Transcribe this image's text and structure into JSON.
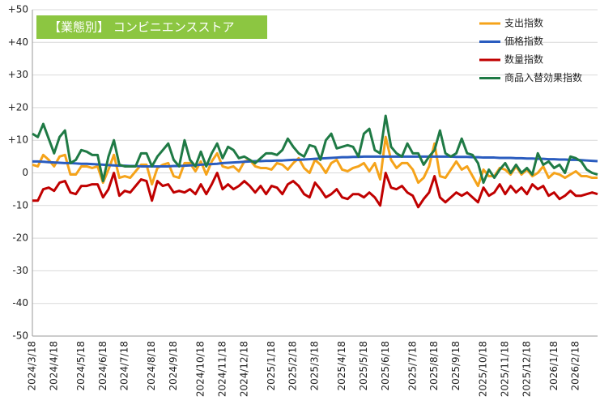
{
  "chart_data": {
    "type": "line",
    "title": "【業態別】 コンビニエンスストア",
    "categories": [
      "2024/3/18",
      null,
      null,
      null,
      "2024/4/18",
      null,
      null,
      null,
      null,
      "2024/5/18",
      null,
      null,
      null,
      "2024/6/18",
      null,
      null,
      null,
      "2024/7/18",
      null,
      null,
      null,
      null,
      "2024/8/18",
      null,
      null,
      null,
      "2024/9/18",
      null,
      null,
      null,
      null,
      "2024/10/18",
      null,
      null,
      null,
      "2024/11/18",
      null,
      null,
      null,
      "2024/12/18",
      null,
      null,
      null,
      null,
      "2025/1/18",
      null,
      null,
      null,
      "2025/2/18",
      null,
      null,
      null,
      "2025/3/18",
      null,
      null,
      null,
      null,
      "2025/4/18",
      null,
      null,
      null,
      "2025/5/18",
      null,
      null,
      null,
      "2025/6/18",
      null,
      null,
      null,
      null,
      "2025/7/18",
      null,
      null,
      null,
      "2025/8/18",
      null,
      null,
      null,
      "2025/9/18",
      null,
      null,
      null,
      null,
      "2025/10/18",
      null,
      null,
      null,
      "2025/11/18",
      null,
      null,
      null,
      "2025/12/18",
      null,
      null,
      null,
      null,
      "2026/1/18",
      null,
      null,
      null,
      "2026/2/18",
      null,
      null,
      null,
      null
    ],
    "series": [
      {
        "name": "支出指数",
        "color": "#f5a31a",
        "values": [
          2.5,
          2,
          5.5,
          4,
          2,
          5,
          5.5,
          -0.5,
          -0.5,
          2,
          2,
          1.5,
          2,
          -3,
          1,
          5.5,
          -1.5,
          -1,
          -1.5,
          0.5,
          2.5,
          2.5,
          -3.5,
          1.5,
          2.5,
          3,
          -1,
          -1.5,
          3,
          3,
          0.5,
          3.5,
          -0.5,
          3.5,
          6,
          2,
          1.5,
          2,
          0.5,
          3.5,
          4,
          2,
          1.5,
          1.5,
          1,
          3,
          2.5,
          1,
          3,
          4.5,
          1.5,
          0,
          4,
          2.5,
          0,
          3,
          4,
          1,
          0.5,
          1.5,
          2,
          3,
          0.5,
          3,
          -2,
          11,
          4,
          1.5,
          3,
          3,
          1,
          -3,
          -1.5,
          2,
          9,
          -1,
          -1.5,
          1,
          3.5,
          1,
          2,
          -1,
          -4,
          1,
          -1,
          -1,
          1.5,
          1,
          -0.5,
          2,
          -0.5,
          1,
          -1,
          0,
          2,
          -1.5,
          0,
          -0.5,
          -1.5,
          -0.5,
          0.5,
          -1,
          -1,
          -1.5,
          -1.5
        ]
      },
      {
        "name": "価格指数",
        "color": "#2a5cbf",
        "values": [
          3.5,
          3.5,
          3.4,
          3.3,
          3.2,
          3.1,
          3.0,
          3.0,
          2.9,
          2.8,
          2.8,
          2.7,
          2.6,
          2.5,
          2.4,
          2.3,
          2.2,
          2.2,
          2.1,
          2.1,
          2.0,
          2.0,
          2.0,
          2.0,
          2.0,
          2.0,
          2.1,
          2.1,
          2.2,
          2.3,
          2.4,
          2.5,
          2.6,
          2.7,
          2.8,
          3.0,
          3.1,
          3.2,
          3.3,
          3.4,
          3.5,
          3.6,
          3.6,
          3.7,
          3.7,
          3.8,
          3.8,
          3.9,
          4.0,
          4.0,
          4.1,
          4.2,
          4.3,
          4.4,
          4.5,
          4.6,
          4.7,
          4.8,
          4.8,
          4.9,
          4.9,
          5.0,
          5.0,
          5.0,
          5.0,
          5.0,
          5.0,
          5.0,
          5.0,
          5.0,
          5.0,
          5.0,
          5.0,
          5.0,
          5.0,
          5.0,
          5.0,
          5.0,
          4.9,
          4.9,
          4.9,
          4.8,
          4.8,
          4.7,
          4.7,
          4.7,
          4.6,
          4.6,
          4.6,
          4.5,
          4.5,
          4.4,
          4.4,
          4.3,
          4.3,
          4.2,
          4.2,
          4.1,
          4.1,
          4.0,
          4.0,
          3.9,
          3.8,
          3.7,
          3.6
        ]
      },
      {
        "name": "数量指数",
        "color": "#c00000",
        "values": [
          -8.5,
          -8.5,
          -5,
          -4.5,
          -5.5,
          -3,
          -2.5,
          -6,
          -6.5,
          -4,
          -4,
          -3.5,
          -3.5,
          -7.5,
          -5,
          0,
          -7,
          -5.5,
          -6,
          -4,
          -2,
          -2.5,
          -8.5,
          -2.5,
          -4,
          -3.5,
          -6,
          -5.5,
          -6,
          -5,
          -6.5,
          -3.5,
          -6.5,
          -3.5,
          0,
          -5,
          -3.5,
          -5,
          -4,
          -2.5,
          -4,
          -6,
          -4,
          -6.5,
          -4,
          -4.5,
          -6.5,
          -3.5,
          -2.5,
          -4,
          -6.5,
          -7.5,
          -3,
          -5,
          -7.5,
          -6.5,
          -5,
          -7.5,
          -8,
          -6.5,
          -6.5,
          -7.5,
          -6,
          -7.5,
          -10,
          0,
          -4.5,
          -5,
          -4,
          -6,
          -7,
          -10.5,
          -8,
          -6,
          -1,
          -7.5,
          -9,
          -7.5,
          -6,
          -7,
          -6,
          -7.5,
          -9,
          -4.5,
          -7,
          -6,
          -3.5,
          -6.5,
          -4,
          -6,
          -4.5,
          -6.5,
          -3.5,
          -5,
          -4,
          -7,
          -6,
          -8,
          -7,
          -5.5,
          -7,
          -7,
          -6.5,
          -6,
          -6.5
        ]
      },
      {
        "name": "商品入替効果指数",
        "color": "#1f7a45",
        "values": [
          12,
          11,
          15,
          10.5,
          6,
          11,
          13,
          3,
          4,
          7,
          6.5,
          5.5,
          5.5,
          -2.5,
          5,
          10,
          2.5,
          2,
          2,
          2,
          6,
          6,
          2,
          5,
          7,
          9,
          4,
          2,
          10,
          4,
          2,
          6.5,
          2,
          6,
          9,
          4.5,
          8,
          7,
          4.5,
          5,
          4,
          3,
          4.5,
          6,
          6,
          5.5,
          7,
          10.5,
          8,
          6,
          5,
          8.5,
          8,
          4,
          10,
          12,
          7.5,
          8,
          8.5,
          8,
          5,
          12,
          13.5,
          7,
          6,
          17.5,
          8,
          6,
          5,
          9,
          6,
          6,
          2.5,
          5,
          7,
          13,
          6,
          5,
          6,
          10.5,
          6,
          5.5,
          3,
          -3,
          1,
          -1.5,
          1,
          3,
          0,
          2.5,
          0,
          1.5,
          -0.5,
          6,
          2.5,
          3.5,
          1.5,
          2.5,
          0,
          5,
          4.5,
          3.5,
          1,
          0,
          -0.5
        ]
      }
    ],
    "ylim": [
      -50,
      50
    ],
    "yticks": [
      {
        "value": 50,
        "label": "+50"
      },
      {
        "value": 40,
        "label": "+40"
      },
      {
        "value": 30,
        "label": "+30"
      },
      {
        "value": 20,
        "label": "+20"
      },
      {
        "value": 10,
        "label": "+10"
      },
      0,
      -10,
      -20,
      -30,
      -40,
      -50
    ],
    "grid": true,
    "legend": "upper right",
    "title_color": "#8cc641"
  }
}
